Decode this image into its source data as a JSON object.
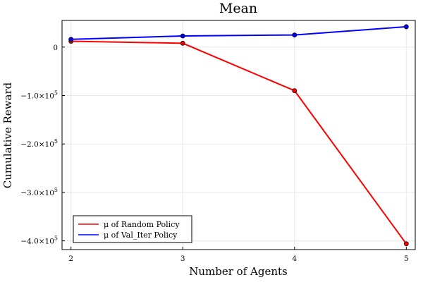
{
  "chart_data": {
    "type": "line",
    "title": "Mean",
    "xlabel": "Number of Agents",
    "ylabel": "Cumulative Reward",
    "x": [
      2,
      3,
      4,
      5
    ],
    "xlim": [
      1.92,
      5.08
    ],
    "ylim": [
      -418000,
      55000
    ],
    "xticks": [
      2,
      3,
      4,
      5
    ],
    "xtick_labels": [
      "2",
      "3",
      "4",
      "5"
    ],
    "yticks": [
      0,
      -100000,
      -200000,
      -300000,
      -400000
    ],
    "ytick_labels": [
      {
        "mantissa": "0",
        "exp": ""
      },
      {
        "mantissa": "−1.0×10",
        "exp": "5"
      },
      {
        "mantissa": "−2.0×10",
        "exp": "5"
      },
      {
        "mantissa": "−3.0×10",
        "exp": "5"
      },
      {
        "mantissa": "−4.0×10",
        "exp": "5"
      }
    ],
    "grid": true,
    "legend_position": "bottom-left",
    "series": [
      {
        "name": "μ of Random Policy",
        "color": "#ff0000",
        "values": [
          12000,
          8000,
          -90000,
          -406000
        ]
      },
      {
        "name": "μ of Val_Iter Policy",
        "color": "#0000ff",
        "values": [
          16000,
          23000,
          25000,
          42000
        ]
      }
    ]
  }
}
